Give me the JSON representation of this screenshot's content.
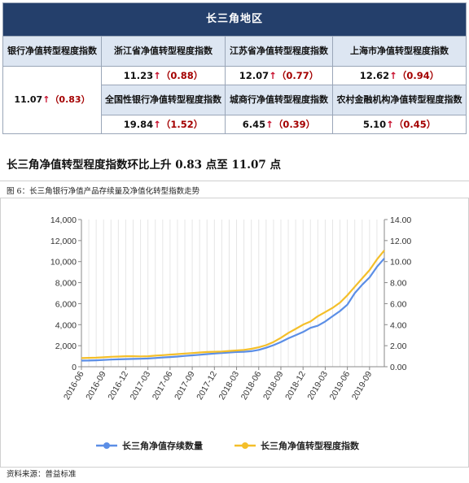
{
  "table": {
    "region_title": "长三角地区",
    "bank_index_label": "银行净值转型程度指数",
    "bank_index_value": "11.07",
    "bank_index_change": "（0.83）",
    "up_arrow": "↑",
    "cells_row1": [
      {
        "label": "浙江省净值转型程度指数",
        "value": "11.23",
        "change": "（0.88）"
      },
      {
        "label": "江苏省净值转型程度指数",
        "value": "12.07",
        "change": "（0.77）"
      },
      {
        "label": "上海市净值转型程度指数",
        "value": "12.62",
        "change": "（0.94）"
      }
    ],
    "cells_row2": [
      {
        "label": "全国性银行净值转型程度指数",
        "value": "19.84",
        "change": "（1.52）"
      },
      {
        "label": "城商行净值转型程度指数",
        "value": "6.45",
        "change": "（0.39）"
      },
      {
        "label": "农村金融机构净值转型程度指数",
        "value": "5.10",
        "change": "（0.45）"
      }
    ]
  },
  "headline": "长三角净值转型程度指数环比上升 0.83 点至 11.07 点",
  "figure_caption": "图 6：长三角银行净值产品存续量及净值化转型指数走势",
  "source": "资料来源：普益标准",
  "chart_data": {
    "type": "line",
    "x": [
      "2016-06",
      "2016-07",
      "2016-08",
      "2016-09",
      "2016-10",
      "2016-11",
      "2016-12",
      "2017-01",
      "2017-02",
      "2017-03",
      "2017-04",
      "2017-05",
      "2017-06",
      "2017-07",
      "2017-08",
      "2017-09",
      "2017-10",
      "2017-11",
      "2017-12",
      "2018-01",
      "2018-02",
      "2018-03",
      "2018-04",
      "2018-05",
      "2018-06",
      "2018-07",
      "2018-08",
      "2018-09",
      "2018-10",
      "2018-11",
      "2018-12",
      "2019-01",
      "2019-02",
      "2019-03",
      "2019-04",
      "2019-05",
      "2019-06",
      "2019-07",
      "2019-08",
      "2019-09",
      "2019-10",
      "2019-11"
    ],
    "tick_labels": [
      "2016-06",
      "2016-09",
      "2016-12",
      "2017-03",
      "2017-06",
      "2017-09",
      "2017-12",
      "2018-03",
      "2018-06",
      "2018-09",
      "2018-12",
      "2019-03",
      "2019-06",
      "2019-09"
    ],
    "y_left": {
      "min": 0,
      "max": 14000,
      "ticks": [
        "0",
        "2,000",
        "4,000",
        "6,000",
        "8,000",
        "10,000",
        "12,000",
        "14,000"
      ]
    },
    "y_right": {
      "min": 0,
      "max": 14,
      "ticks": [
        "0.00",
        "2.00",
        "4.00",
        "6.00",
        "8.00",
        "10.00",
        "12.00",
        "14.00"
      ]
    },
    "series": [
      {
        "name": "长三角净值存续数量",
        "axis": "left",
        "color": "#5b8ee6",
        "values": [
          580,
          590,
          610,
          640,
          680,
          700,
          730,
          740,
          760,
          780,
          830,
          880,
          920,
          970,
          1030,
          1080,
          1140,
          1200,
          1250,
          1300,
          1350,
          1400,
          1420,
          1480,
          1600,
          1800,
          2050,
          2350,
          2700,
          3000,
          3300,
          3700,
          3900,
          4300,
          4800,
          5300,
          5900,
          7000,
          7800,
          8500,
          9500,
          10300
        ]
      },
      {
        "name": "长三角净值转型程度指数",
        "axis": "right",
        "color": "#f4bf2a",
        "values": [
          0.82,
          0.84,
          0.86,
          0.9,
          0.94,
          0.97,
          1.0,
          1.0,
          0.98,
          1.0,
          1.05,
          1.1,
          1.15,
          1.2,
          1.25,
          1.3,
          1.35,
          1.4,
          1.42,
          1.45,
          1.5,
          1.55,
          1.6,
          1.7,
          1.85,
          2.05,
          2.35,
          2.75,
          3.2,
          3.6,
          4.0,
          4.3,
          4.8,
          5.2,
          5.6,
          6.1,
          6.8,
          7.6,
          8.4,
          9.2,
          10.2,
          11.07
        ]
      }
    ],
    "legend_position": "bottom",
    "grid": "vertical"
  }
}
